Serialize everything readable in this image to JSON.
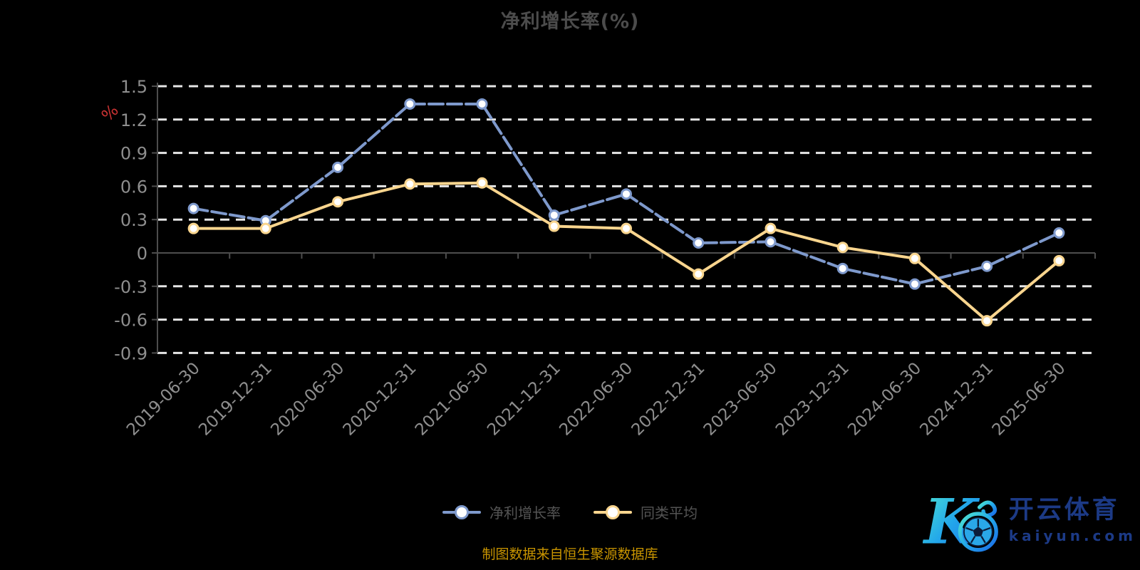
{
  "title": "净利增长率(%)",
  "y_axis": {
    "unit_label": "%"
  },
  "footer": {
    "source_note": "制图数据来自恒生聚源数据库"
  },
  "logo": {
    "brand_name": "开云体育",
    "domain": "kaiyun.com"
  },
  "colors": {
    "background": "#000000",
    "title_text": "#4c4c4c",
    "axis_label": "#8e8e8e",
    "axis_line": "#4d4d4d",
    "gridline": "#e6e6e6",
    "y_unit_red": "#cc3333",
    "legend_text": "#545454",
    "footer_text": "#c89400",
    "logo_blue": "#1c3a86",
    "series_blue": "#7e99cc",
    "series_yellow": "#f9d58e"
  },
  "chart_data": {
    "type": "line",
    "title": "净利增长率(%)",
    "ylabel": "%",
    "ylim": [
      -0.9,
      1.5
    ],
    "yticks": [
      1.5,
      1.2,
      0.9,
      0.6,
      0.3,
      0,
      -0.3,
      -0.6,
      -0.9
    ],
    "grid": "horizontal-dashed-white",
    "legend_position": "bottom-center",
    "x_label_rotation": -45,
    "categories": [
      "2019-06-30",
      "2019-12-31",
      "2020-06-30",
      "2020-12-31",
      "2021-06-30",
      "2021-12-31",
      "2022-06-30",
      "2022-12-31",
      "2023-06-30",
      "2023-12-31",
      "2024-06-30",
      "2024-12-31",
      "2025-06-30"
    ],
    "series": [
      {
        "name": "净利增长率",
        "color": "#7e99cc",
        "line_style": "dashed",
        "marker": "circle-white-fill",
        "values": [
          0.4,
          0.29,
          0.77,
          1.34,
          1.34,
          0.34,
          0.53,
          0.09,
          0.1,
          -0.14,
          -0.28,
          -0.12,
          0.18
        ]
      },
      {
        "name": "同类平均",
        "color": "#f9d58e",
        "line_style": "solid",
        "marker": "circle-white-fill",
        "values": [
          0.22,
          0.22,
          0.46,
          0.62,
          0.63,
          0.24,
          0.22,
          -0.19,
          0.22,
          0.05,
          -0.05,
          -0.61,
          -0.07
        ]
      }
    ]
  }
}
